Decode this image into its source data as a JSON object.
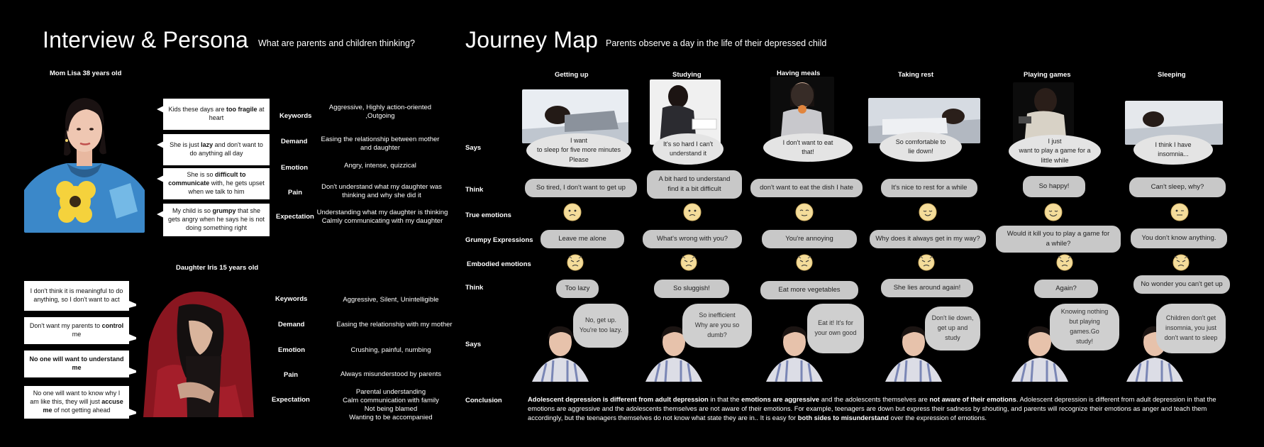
{
  "left": {
    "title": "Interview & Persona",
    "subtitle": "What are parents and children thinking?",
    "mom": {
      "name": "Mom Lisa 38 years old",
      "quotes": [
        [
          "Kids these days are ",
          "too fragile",
          " at heart"
        ],
        [
          "She is just ",
          "lazy",
          " and don't want to do anything all day"
        ],
        [
          "She is so ",
          "difficult to communicate",
          " with, he gets upset when we talk to him"
        ],
        [
          "My child is so ",
          "grumpy",
          " that she gets angry when he says he is not doing something right"
        ]
      ],
      "rows": [
        {
          "label": "Keywords",
          "value": "Aggressive, Highly action-oriented ,Outgoing"
        },
        {
          "label": "Demand",
          "value": "Easing the relationship between mother and daughter"
        },
        {
          "label": "Emotion",
          "value": "Angry, intense, quizzical"
        },
        {
          "label": "Pain",
          "value": "Don't understand what my daughter was thinking and why she did it"
        },
        {
          "label": "Expectation",
          "value": "Understanding what my daughter is thinking\nCalmly communicating with my daughter"
        }
      ]
    },
    "daughter": {
      "name": "Daughter Iris 15 years old",
      "quotes": [
        [
          "I don't think it is meaningful to do anything, so I don't want to act",
          "",
          ""
        ],
        [
          "Don't want my parents to ",
          "control",
          " me"
        ],
        [
          "",
          "No one will want to understand me",
          ""
        ],
        [
          "No one will want to know why I am like this, they will just ",
          "accuse me",
          " of not getting ahead"
        ]
      ],
      "rows": [
        {
          "label": "Keywords",
          "value": "Aggressive, Silent, Unintelligible"
        },
        {
          "label": "Demand",
          "value": "Easing the relationship with my mother"
        },
        {
          "label": "Emotion",
          "value": "Crushing, painful, numbing"
        },
        {
          "label": "Pain",
          "value": "Always misunderstood by parents"
        },
        {
          "label": "Expectation",
          "value": "Parental understanding\nCalm communication with family\nNot being blamed\nWanting to be accompanied"
        }
      ]
    }
  },
  "journey": {
    "title": "Journey Map",
    "subtitle": "Parents observe a day in the life of their depressed child",
    "row_labels": {
      "says": "Says",
      "think": "Think",
      "true_emotions": "True emotions",
      "grumpy": "Grumpy Expressions",
      "embodied": "Embodied emotions",
      "think2": "Think",
      "says2": "Says",
      "conclusion": "Conclusion"
    },
    "stages": [
      {
        "name": "Getting up",
        "child_says": "I want\nto sleep for five more minutes\nPlease",
        "child_thinks": "So tired,  I don't want to get up",
        "grumpy": "Leave me alone",
        "parent_thinks": "Too lazy",
        "parent_says": "No, get up.\nYou're too lazy."
      },
      {
        "name": "Studying",
        "child_says": "It's so hard I can't\nunderstand it",
        "child_thinks": "A bit hard to understand\nfind it a bit difficult",
        "grumpy": "What's wrong with you?",
        "parent_thinks": "So sluggish!",
        "parent_says": "So inefficient\nWhy are you so dumb?"
      },
      {
        "name": "Having meals",
        "child_says": "I don't want to eat\nthat!",
        "child_thinks": "don't want to eat the dish I hate",
        "grumpy": "You're annoying",
        "parent_thinks": "Eat more vegetables",
        "parent_says": "Eat it!  It's for\nyour own good"
      },
      {
        "name": "Taking rest",
        "child_says": "So comfortable to\nlie down!",
        "child_thinks": "It's nice to rest for a while",
        "grumpy": "Why does it always get in my way?",
        "parent_thinks": "She lies around again!",
        "parent_says": "Don't lie down,\nget up and study"
      },
      {
        "name": "Playing games",
        "child_says": "I just\nwant to play a game for a\nlittle while",
        "child_thinks": "So happy!",
        "grumpy": "Would it kill you to play a game for\na while?",
        "parent_thinks": "Again?",
        "parent_says": "Knowing nothing\nbut playing games.Go\nstudy!"
      },
      {
        "name": "Sleeping",
        "child_says": "I think I have\ninsomnia...",
        "child_thinks": "Can't sleep, why?",
        "grumpy": "You don't know anything.",
        "parent_thinks": "No wonder you can't get up",
        "parent_says": "Children don't get\ninsomnia, you just\ndon't want to sleep"
      }
    ],
    "conclusion": [
      {
        "t": "Adolescent depression is different from adult depression",
        "b": true
      },
      {
        "t": " in that the ",
        "b": false
      },
      {
        "t": "emotions are aggressive",
        "b": true
      },
      {
        "t": " and the adolescents themselves are ",
        "b": false
      },
      {
        "t": "not aware of their emotions",
        "b": true
      },
      {
        "t": ". Adolescent depression is different from adult depression in that the emotions are aggressive and the adolescents themselves are not aware of their emotions. For example, teenagers are down but express their sadness by shouting, and parents will recognize their emotions as anger and teach them accordingly, but the teenagers themselves do not know what state they are in.. It is easy for ",
        "b": false
      },
      {
        "t": "both sides to misunderstand",
        "b": true
      },
      {
        "t": " over the expression of emotions.",
        "b": false
      }
    ]
  },
  "colors": {
    "background": "#000000",
    "pill": "#c8c8c8",
    "cloud": "#e4e4e4",
    "face": "#f4dc9a"
  }
}
